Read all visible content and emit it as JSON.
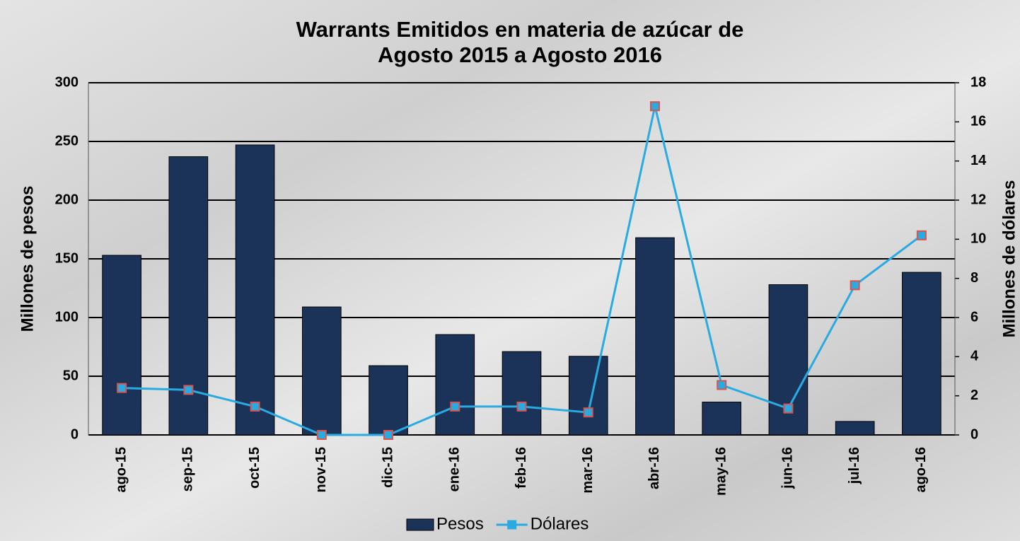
{
  "chart_data": {
    "type": "bar_line",
    "title": [
      "Warrants Emitidos en materia de azúcar de",
      "Agosto 2015 a Agosto 2016"
    ],
    "ylabel": "Millones de pesos",
    "y2label": "Millones de dólares",
    "categories": [
      "ago-15",
      "sep-15",
      "oct-15",
      "nov-15",
      "dic-15",
      "ene-16",
      "feb-16",
      "mar-16",
      "abr-16",
      "may-16",
      "jun-16",
      "jul-16",
      "ago-16"
    ],
    "series": [
      {
        "name": "Pesos",
        "type": "bar",
        "color": "#1b3358",
        "values": [
          153,
          237,
          247,
          109,
          59,
          85.5,
          71,
          67,
          168,
          28,
          128,
          11.5,
          138.5
        ]
      },
      {
        "name": "Dólares",
        "type": "line",
        "axis": "y2",
        "color": "#29abe2",
        "marker_edge": "#d9534f",
        "values": [
          2.4,
          2.3,
          1.45,
          0,
          0,
          1.45,
          1.45,
          1.15,
          16.8,
          2.55,
          1.35,
          7.65,
          10.2
        ]
      }
    ],
    "ylim": [
      0,
      300
    ],
    "yticks": [
      0,
      50,
      100,
      150,
      200,
      250,
      300
    ],
    "y2lim": [
      0,
      18
    ],
    "y2ticks": [
      0,
      2,
      4,
      6,
      8,
      10,
      12,
      14,
      16,
      18
    ],
    "grid": true,
    "legend": "bottom"
  }
}
